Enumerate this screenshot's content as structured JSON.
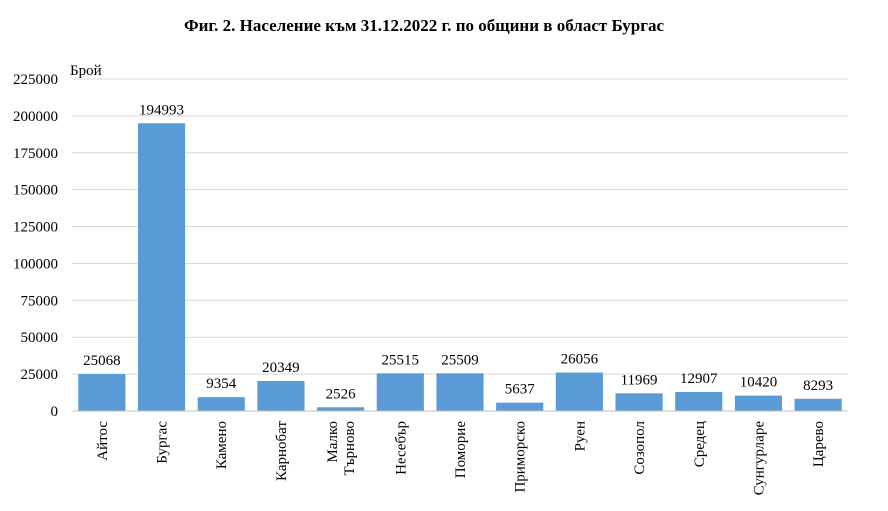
{
  "chart_data": {
    "type": "bar",
    "title": "Фиг. 2. Население към 31.12.2022 г. по общини в област Бургас",
    "ylabel": "Брой",
    "xlabel": "",
    "ylim": [
      0,
      225000
    ],
    "yticks": [
      0,
      25000,
      50000,
      75000,
      100000,
      125000,
      150000,
      175000,
      200000,
      225000
    ],
    "grid": true,
    "legend": "none",
    "bar_color": "#5b9bd5",
    "categories": [
      [
        "Айтос"
      ],
      [
        "Бургас"
      ],
      [
        "Камено"
      ],
      [
        "Карнобат"
      ],
      [
        "Малко",
        "Търново"
      ],
      [
        "Несебър"
      ],
      [
        "Поморие"
      ],
      [
        "Приморско"
      ],
      [
        "Руен"
      ],
      [
        "Созопол"
      ],
      [
        "Средец"
      ],
      [
        "Сунгурларе"
      ],
      [
        "Царево"
      ]
    ],
    "values": [
      25068,
      194993,
      9354,
      20349,
      2526,
      25515,
      25509,
      5637,
      26056,
      11969,
      12907,
      10420,
      8293
    ],
    "data_labels": [
      "25068",
      "194993",
      "9354",
      "20349",
      "2526",
      "25515",
      "25509",
      "5637",
      "26056",
      "11969",
      "12907",
      "10420",
      "8293"
    ],
    "ytick_labels": [
      "0",
      "25000",
      "50000",
      "75000",
      "100000",
      "125000",
      "150000",
      "175000",
      "200000",
      "225000"
    ]
  }
}
